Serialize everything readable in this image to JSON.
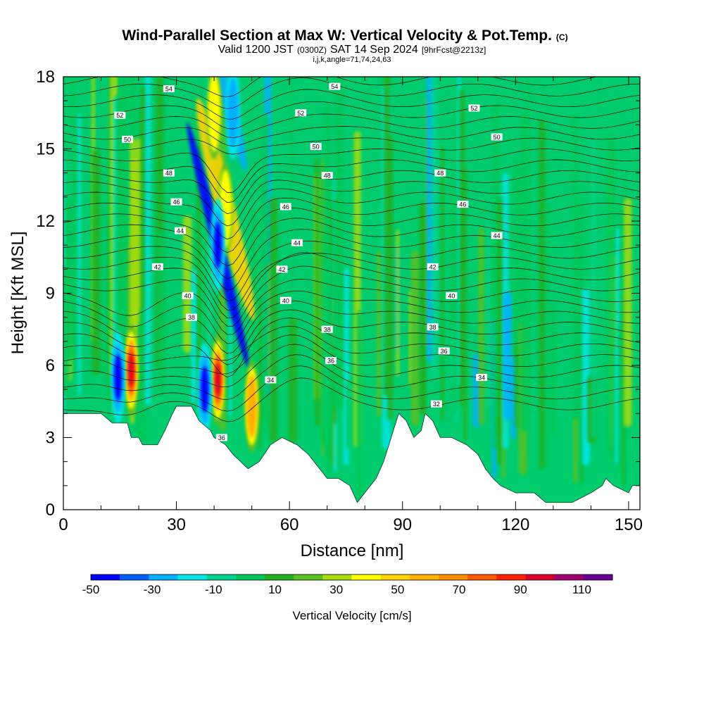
{
  "title": {
    "main": "Wind-Parallel Section at Max W: Vertical Velocity & Pot.Temp.",
    "main_unit": "(C)",
    "valid_prefix": "Valid 1200 JST",
    "valid_utc": "(0300Z)",
    "valid_date": "SAT 14 Sep 2024",
    "forecast": "[9hrFcst@2213z]",
    "indices": "i,j,k,angle=71,74,24,63"
  },
  "chart_data": {
    "type": "heatmap",
    "x_axis": {
      "label": "Distance [nm]",
      "range": [
        0,
        153
      ],
      "ticks": [
        "0",
        "30",
        "60",
        "90",
        "120",
        "150"
      ],
      "tick_values": [
        0,
        30,
        60,
        90,
        120,
        150
      ]
    },
    "y_axis": {
      "label": "Height [Kft MSL]",
      "range": [
        0,
        18
      ],
      "ticks": [
        "0",
        "3",
        "6",
        "9",
        "12",
        "15",
        "18"
      ],
      "tick_values": [
        0,
        3,
        6,
        9,
        12,
        15,
        18
      ]
    },
    "colorbar": {
      "label": "Vertical Velocity [cm/s]",
      "bounds": [
        -50,
        120
      ],
      "colors": [
        "#0000ff",
        "#0060ff",
        "#00b0ff",
        "#00e6e6",
        "#00d48c",
        "#00c85a",
        "#20b020",
        "#58c020",
        "#a8dc10",
        "#ffff00",
        "#ffd400",
        "#ffb000",
        "#ff8c00",
        "#ff5a00",
        "#ff2000",
        "#dc0028",
        "#a0006e",
        "#6a0096"
      ],
      "tick_labels": [
        "-50",
        "-30",
        "-10",
        "10",
        "30",
        "50",
        "70",
        "90",
        "110"
      ],
      "tick_values": [
        -50,
        -30,
        -10,
        10,
        30,
        50,
        70,
        90,
        110
      ]
    },
    "updraft_cores": [
      {
        "x": 18,
        "y": 5.8,
        "w": 95
      },
      {
        "x": 41,
        "y": 5.4,
        "w": 95
      },
      {
        "x": 50,
        "y": 4.3,
        "w": 70
      },
      {
        "x": 43,
        "y": 12.5,
        "w": 45
      },
      {
        "x": 40,
        "y": 16.5,
        "w": 40
      }
    ],
    "downdraft_cores": [
      {
        "x": 14.5,
        "y": 5.5,
        "w": -45
      },
      {
        "x": 37.5,
        "y": 5.0,
        "w": -45
      },
      {
        "x": 41,
        "y": 11.0,
        "w": -45
      },
      {
        "x": 45,
        "y": 16.5,
        "w": -35
      }
    ],
    "terrain_height": [
      [
        0,
        4.0
      ],
      [
        10,
        4.0
      ],
      [
        13,
        3.6
      ],
      [
        17,
        3.6
      ],
      [
        18,
        3.0
      ],
      [
        20,
        3.0
      ],
      [
        21,
        2.7
      ],
      [
        25,
        2.7
      ],
      [
        27,
        3.3
      ],
      [
        29,
        4.0
      ],
      [
        30,
        4.3
      ],
      [
        34,
        4.3
      ],
      [
        36,
        3.7
      ],
      [
        39,
        3.3
      ],
      [
        40,
        3.0
      ],
      [
        43,
        2.7
      ],
      [
        45,
        2.3
      ],
      [
        47,
        2.0
      ],
      [
        49,
        1.7
      ],
      [
        52,
        2.0
      ],
      [
        55,
        2.7
      ],
      [
        58,
        3.0
      ],
      [
        62,
        2.7
      ],
      [
        65,
        2.3
      ],
      [
        68,
        1.7
      ],
      [
        70,
        1.3
      ],
      [
        73,
        1.3
      ],
      [
        76,
        1.0
      ],
      [
        78,
        0.3
      ],
      [
        80,
        0.7
      ],
      [
        83,
        1.3
      ],
      [
        85,
        2.0
      ],
      [
        87,
        3.0
      ],
      [
        89,
        4.0
      ],
      [
        91,
        3.7
      ],
      [
        93,
        3.0
      ],
      [
        95,
        3.3
      ],
      [
        96,
        4.0
      ],
      [
        98,
        3.7
      ],
      [
        100,
        3.0
      ],
      [
        103,
        3.0
      ],
      [
        107,
        2.7
      ],
      [
        110,
        2.3
      ],
      [
        112,
        1.7
      ],
      [
        114,
        1.3
      ],
      [
        116,
        1.0
      ],
      [
        120,
        0.7
      ],
      [
        125,
        0.7
      ],
      [
        128,
        0.3
      ],
      [
        132,
        0.3
      ],
      [
        135,
        0.3
      ],
      [
        140,
        0.7
      ],
      [
        143,
        1.0
      ],
      [
        144,
        1.3
      ],
      [
        146,
        1.0
      ],
      [
        150,
        0.7
      ],
      [
        151,
        1.0
      ],
      [
        153,
        1.0
      ]
    ],
    "theta_contours": [
      {
        "label": "32",
        "label_x": 99,
        "label_y": 4.4
      },
      {
        "label": "34",
        "label_x": 55,
        "label_y": 5.4
      },
      {
        "label": "34",
        "label_x": 111,
        "label_y": 5.5
      },
      {
        "label": "36",
        "label_x": 71,
        "label_y": 6.2
      },
      {
        "label": "36",
        "label_x": 101,
        "label_y": 6.6
      },
      {
        "label": "38",
        "label_x": 70,
        "label_y": 7.5
      },
      {
        "label": "38",
        "label_x": 98,
        "label_y": 7.6
      },
      {
        "label": "38",
        "label_x": 34,
        "label_y": 8.0
      },
      {
        "label": "40",
        "label_x": 33,
        "label_y": 8.9
      },
      {
        "label": "40",
        "label_x": 59,
        "label_y": 8.7
      },
      {
        "label": "40",
        "label_x": 103,
        "label_y": 8.9
      },
      {
        "label": "42",
        "label_x": 25,
        "label_y": 10.1
      },
      {
        "label": "42",
        "label_x": 58,
        "label_y": 10.0
      },
      {
        "label": "42",
        "label_x": 98,
        "label_y": 10.1
      },
      {
        "label": "44",
        "label_x": 31,
        "label_y": 11.6
      },
      {
        "label": "44",
        "label_x": 62,
        "label_y": 11.1
      },
      {
        "label": "44",
        "label_x": 115,
        "label_y": 11.4
      },
      {
        "label": "46",
        "label_x": 30,
        "label_y": 12.8
      },
      {
        "label": "46",
        "label_x": 59,
        "label_y": 12.6
      },
      {
        "label": "46",
        "label_x": 106,
        "label_y": 12.7
      },
      {
        "label": "48",
        "label_x": 28,
        "label_y": 14.0
      },
      {
        "label": "48",
        "label_x": 70,
        "label_y": 13.9
      },
      {
        "label": "48",
        "label_x": 100,
        "label_y": 14.0
      },
      {
        "label": "50",
        "label_x": 17,
        "label_y": 15.4
      },
      {
        "label": "50",
        "label_x": 67,
        "label_y": 15.1
      },
      {
        "label": "50",
        "label_x": 115,
        "label_y": 15.5
      },
      {
        "label": "52",
        "label_x": 15,
        "label_y": 16.4
      },
      {
        "label": "52",
        "label_x": 63,
        "label_y": 16.5
      },
      {
        "label": "52",
        "label_x": 109,
        "label_y": 16.7
      },
      {
        "label": "54",
        "label_x": 28,
        "label_y": 17.5
      },
      {
        "label": "54",
        "label_x": 72,
        "label_y": 17.6
      },
      {
        "label": "36",
        "label_x": 42,
        "label_y": 3.0
      }
    ]
  }
}
